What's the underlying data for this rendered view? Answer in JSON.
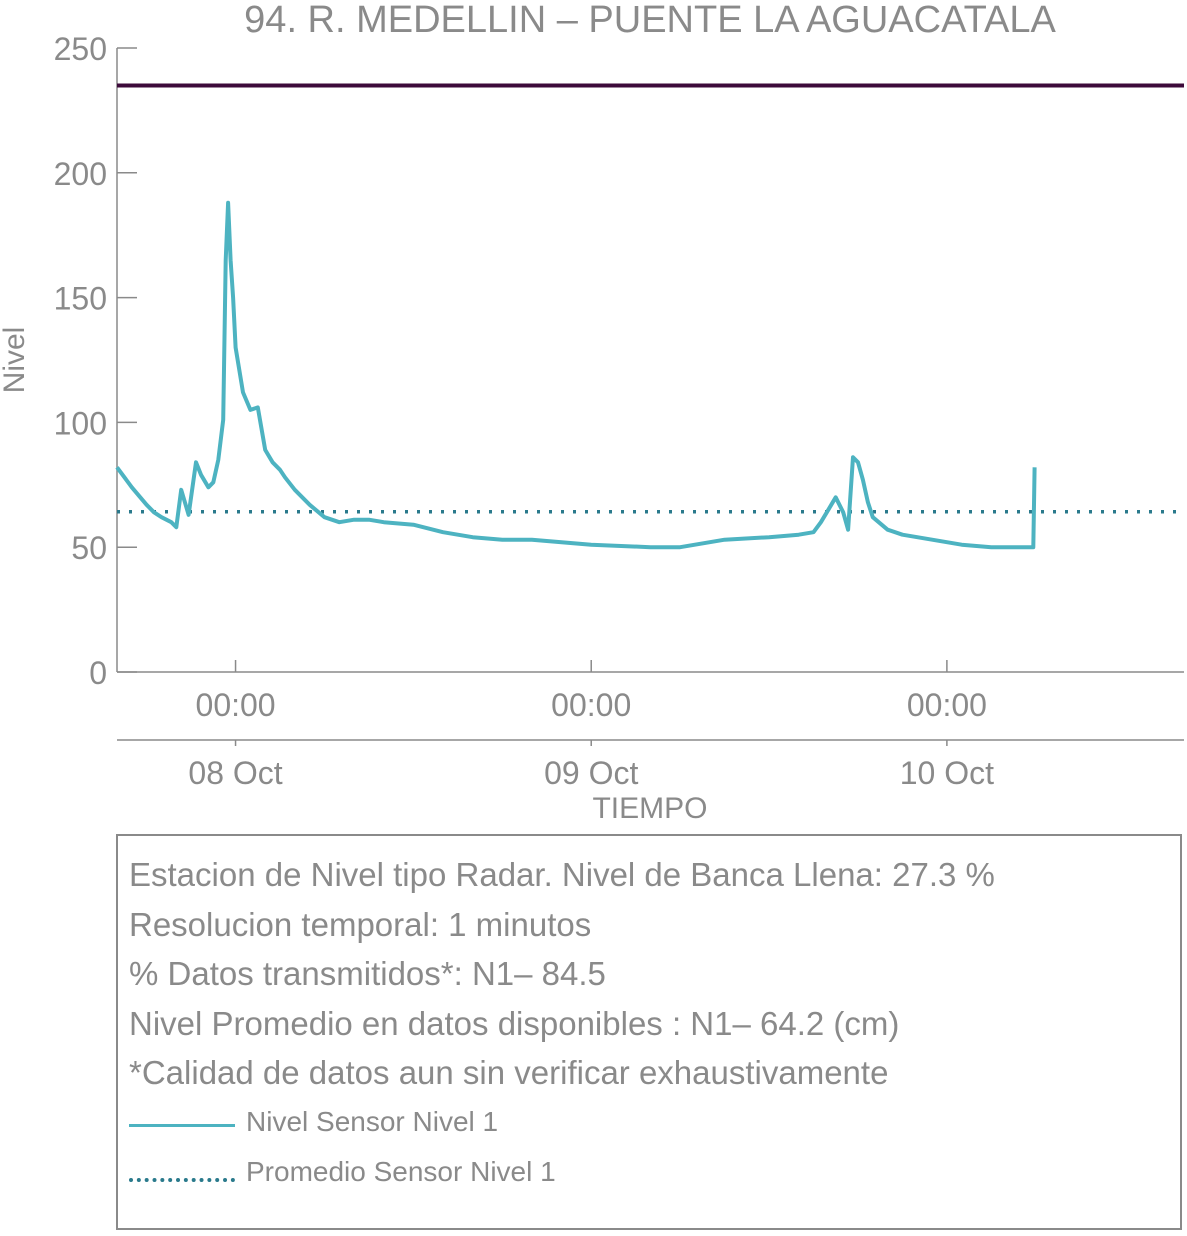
{
  "chart_data": {
    "type": "line",
    "title": "94. R. MEDELLIN – PUENTE LA AGUACATALA",
    "xlabel": "TIEMPO",
    "ylabel": "Nivel",
    "ylim": [
      0,
      250
    ],
    "xlim": [
      "2023-10-07 16:00",
      "2023-10-10 16:00"
    ],
    "yticks": [
      "0",
      "50",
      "100",
      "150",
      "200",
      "250"
    ],
    "xticks_time": [
      "00:00",
      "00:00",
      "00:00"
    ],
    "xticks_date": [
      "08 Oct",
      "09 Oct",
      "10 Oct"
    ],
    "xtick_positions": [
      "2023-10-08 00:00",
      "2023-10-09 00:00",
      "2023-10-10 00:00"
    ],
    "grid": false,
    "threshold_line": {
      "value": 235,
      "color": "#3d0a3a"
    },
    "series": [
      {
        "name": "Nivel Sensor Nivel 1",
        "style": "solid",
        "color": "#4db3c1",
        "x": [
          "2023-10-07 16:00",
          "2023-10-07 17:00",
          "2023-10-07 18:00",
          "2023-10-07 18:30",
          "2023-10-07 19:00",
          "2023-10-07 19:40",
          "2023-10-07 20:00",
          "2023-10-07 20:20",
          "2023-10-07 20:50",
          "2023-10-07 21:20",
          "2023-10-07 21:40",
          "2023-10-07 22:10",
          "2023-10-07 22:30",
          "2023-10-07 22:50",
          "2023-10-07 23:10",
          "2023-10-07 23:20",
          "2023-10-07 23:30",
          "2023-10-07 23:40",
          "2023-10-07 23:50",
          "2023-10-08 00:00",
          "2023-10-08 00:30",
          "2023-10-08 01:00",
          "2023-10-08 01:30",
          "2023-10-08 02:00",
          "2023-10-08 02:30",
          "2023-10-08 03:00",
          "2023-10-08 03:20",
          "2023-10-08 04:00",
          "2023-10-08 05:00",
          "2023-10-08 06:00",
          "2023-10-08 07:00",
          "2023-10-08 08:00",
          "2023-10-08 09:00",
          "2023-10-08 10:00",
          "2023-10-08 12:00",
          "2023-10-08 14:00",
          "2023-10-08 16:00",
          "2023-10-08 18:00",
          "2023-10-08 20:00",
          "2023-10-09 00:00",
          "2023-10-09 04:00",
          "2023-10-09 06:00",
          "2023-10-09 09:00",
          "2023-10-09 12:00",
          "2023-10-09 14:00",
          "2023-10-09 15:00",
          "2023-10-09 15:30",
          "2023-10-09 16:00",
          "2023-10-09 16:30",
          "2023-10-09 17:00",
          "2023-10-09 17:20",
          "2023-10-09 17:40",
          "2023-10-09 18:00",
          "2023-10-09 18:20",
          "2023-10-09 18:40",
          "2023-10-09 19:00",
          "2023-10-09 20:00",
          "2023-10-09 21:00",
          "2023-10-09 22:00",
          "2023-10-09 23:00",
          "2023-10-10 01:00",
          "2023-10-10 03:00",
          "2023-10-10 05:00",
          "2023-10-10 05:50",
          "2023-10-10 05:55"
        ],
        "y": [
          82,
          74,
          67,
          64,
          62,
          60,
          58,
          73,
          63,
          84,
          79,
          74,
          76,
          85,
          101,
          165,
          188,
          165,
          150,
          130,
          112,
          105,
          106,
          89,
          84,
          81,
          78,
          73,
          67,
          62,
          60,
          61,
          61,
          60,
          59,
          56,
          54,
          53,
          53,
          51,
          50,
          50,
          53,
          54,
          55,
          56,
          60,
          65,
          70,
          64,
          57,
          86,
          84,
          77,
          68,
          62,
          57,
          55,
          54,
          53,
          51,
          50,
          50,
          50,
          82
        ]
      },
      {
        "name": "Promedio Sensor Nivel 1",
        "style": "dotted",
        "color": "#2a7a8c",
        "constant": 64.2
      }
    ]
  },
  "info": {
    "line1": "Estacion de Nivel tipo Radar. Nivel de Banca Llena: 27.3 %",
    "line2": "Resolucion temporal: 1 minutos",
    "line3": "% Datos transmitidos*: N1– 84.5",
    "line4": "Nivel Promedio en datos disponibles : N1– 64.2 (cm)",
    "line5": "*Calidad de datos aun sin verificar exhaustivamente"
  },
  "legend": {
    "solid_label": "Nivel Sensor Nivel 1",
    "dotted_label": "Promedio Sensor Nivel 1"
  }
}
